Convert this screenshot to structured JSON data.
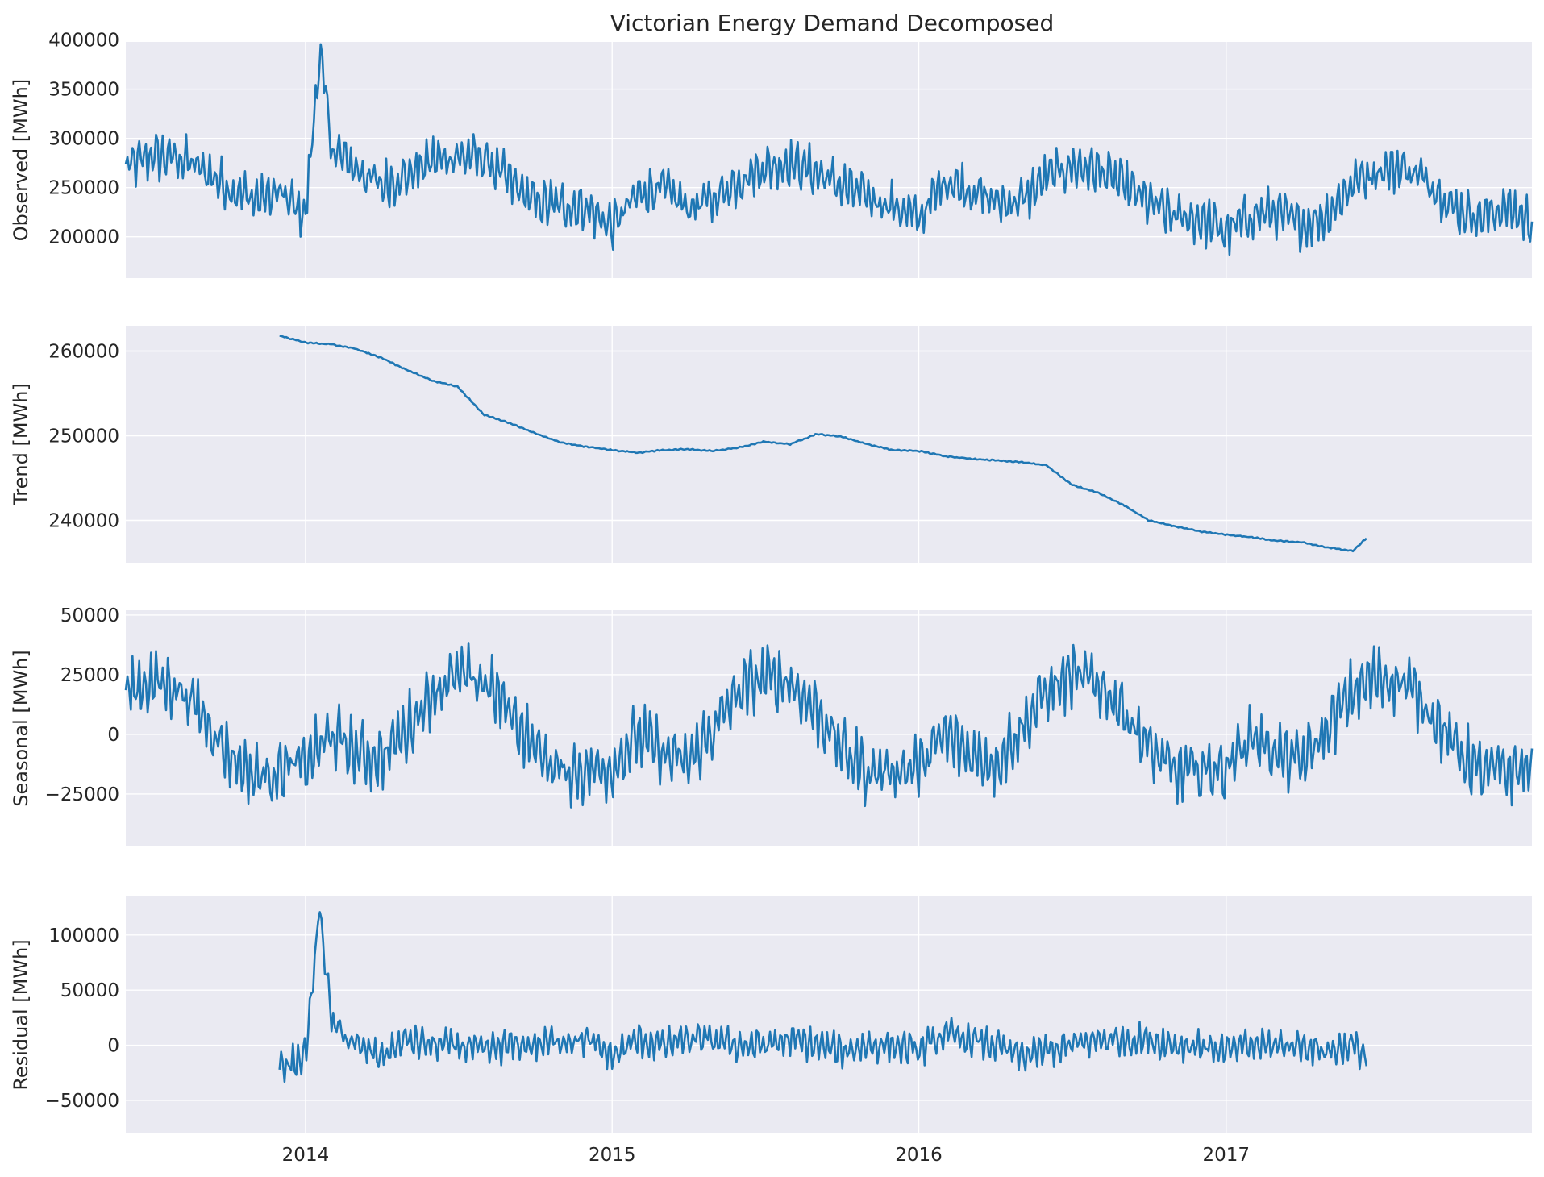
{
  "chart_data": {
    "type": "line",
    "title": "Victorian Energy Demand Decomposed",
    "xlabel": "",
    "x_range": [
      "2013-06-01",
      "2017-12-31"
    ],
    "x_ticks": [
      "2014",
      "2015",
      "2016",
      "2017"
    ],
    "color": "#1f77b4",
    "background": "#eaeaf2",
    "grid": true,
    "panels": [
      {
        "id": "observed",
        "ylabel": "Observed [MWh]",
        "ylim": [
          158000,
          398000
        ],
        "yticks": [
          200000,
          250000,
          300000,
          350000,
          400000
        ],
        "ytick_labels": [
          "200000",
          "250000",
          "300000",
          "350000",
          "400000"
        ],
        "x": [
          "2013-06-01",
          "2013-07-01",
          "2013-08-01",
          "2013-09-01",
          "2013-10-01",
          "2013-11-01",
          "2013-12-01",
          "2014-01-01",
          "2014-01-18",
          "2014-02-01",
          "2014-03-01",
          "2014-04-01",
          "2014-05-01",
          "2014-06-01",
          "2014-07-01",
          "2014-08-01",
          "2014-09-01",
          "2014-10-01",
          "2014-11-01",
          "2014-12-01",
          "2015-01-01",
          "2015-02-01",
          "2015-03-01",
          "2015-04-01",
          "2015-05-01",
          "2015-06-01",
          "2015-07-01",
          "2015-08-01",
          "2015-09-01",
          "2015-10-01",
          "2015-11-01",
          "2015-12-01",
          "2016-01-01",
          "2016-02-01",
          "2016-03-01",
          "2016-04-01",
          "2016-05-01",
          "2016-06-01",
          "2016-07-01",
          "2016-08-01",
          "2016-09-01",
          "2016-10-01",
          "2016-11-01",
          "2016-12-01",
          "2017-01-01",
          "2017-02-01",
          "2017-03-01",
          "2017-04-01",
          "2017-05-01",
          "2017-06-01",
          "2017-07-01",
          "2017-08-01",
          "2017-09-01",
          "2017-10-01",
          "2017-11-01",
          "2017-12-01",
          "2017-12-31"
        ],
        "y": [
          270000,
          282000,
          281000,
          268000,
          250000,
          238000,
          244000,
          222000,
          390000,
          290000,
          270000,
          252000,
          262000,
          278000,
          282000,
          280000,
          256000,
          235000,
          232000,
          230000,
          210000,
          244000,
          250000,
          230000,
          238000,
          258000,
          270000,
          276000,
          265000,
          252000,
          240000,
          232000,
          218000,
          258000,
          248000,
          236000,
          235000,
          260000,
          272000,
          268000,
          252000,
          235000,
          220000,
          218000,
          205000,
          222000,
          225000,
          212000,
          222000,
          255000,
          268000,
          270000,
          255000,
          228000,
          220000,
          230000,
          215000
        ]
      },
      {
        "id": "trend",
        "ylabel": "Trend [MWh]",
        "ylim": [
          235000,
          263000
        ],
        "yticks": [
          240000,
          250000,
          260000
        ],
        "ytick_labels": [
          "240000",
          "250000",
          "260000"
        ],
        "x": [
          "2013-12-01",
          "2014-01-01",
          "2014-02-01",
          "2014-03-01",
          "2014-04-01",
          "2014-05-01",
          "2014-06-01",
          "2014-07-01",
          "2014-08-01",
          "2014-09-01",
          "2014-10-01",
          "2014-11-01",
          "2014-12-01",
          "2015-01-01",
          "2015-02-01",
          "2015-03-01",
          "2015-04-01",
          "2015-05-01",
          "2015-06-01",
          "2015-07-01",
          "2015-08-01",
          "2015-09-01",
          "2015-10-01",
          "2015-11-01",
          "2015-12-01",
          "2016-01-01",
          "2016-02-01",
          "2016-03-01",
          "2016-04-01",
          "2016-05-01",
          "2016-06-01",
          "2016-07-01",
          "2016-08-01",
          "2016-09-01",
          "2016-10-01",
          "2016-11-01",
          "2016-12-01",
          "2017-01-01",
          "2017-02-01",
          "2017-03-01",
          "2017-04-01",
          "2017-05-01",
          "2017-06-01",
          "2017-06-18"
        ],
        "y": [
          261800,
          261000,
          260800,
          260300,
          259200,
          257800,
          256500,
          255800,
          252500,
          251500,
          250300,
          249200,
          248700,
          248300,
          248000,
          248300,
          248400,
          248200,
          248600,
          249300,
          249000,
          250200,
          249900,
          249000,
          248300,
          248200,
          247600,
          247300,
          247100,
          246900,
          246500,
          244200,
          243300,
          241800,
          240000,
          239300,
          238700,
          238300,
          238000,
          237600,
          237400,
          236800,
          236400,
          238000
        ]
      },
      {
        "id": "seasonal",
        "ylabel": "Seasonal [MWh]",
        "ylim": [
          -47000,
          52000
        ],
        "yticks": [
          -25000,
          0,
          25000,
          50000
        ],
        "ytick_labels": [
          "−25000",
          "0",
          "25000",
          "50000"
        ],
        "period": "annual",
        "x": [
          "2013-06-01",
          "2013-07-01",
          "2013-08-01",
          "2013-09-01",
          "2013-10-01",
          "2013-11-01",
          "2013-12-01",
          "2014-01-01",
          "2014-02-01",
          "2014-03-01",
          "2014-04-01",
          "2014-05-01",
          "2014-06-01",
          "2014-07-01",
          "2014-08-01",
          "2014-09-01",
          "2014-10-01",
          "2014-11-01",
          "2014-12-01",
          "2015-01-01",
          "2015-02-01",
          "2015-03-01",
          "2015-04-01",
          "2015-05-01",
          "2015-06-01",
          "2015-07-01",
          "2015-08-01",
          "2015-09-01",
          "2015-10-01",
          "2015-11-01",
          "2015-12-01",
          "2016-01-01",
          "2016-02-01",
          "2016-03-01",
          "2016-04-01",
          "2016-05-01",
          "2016-06-01",
          "2016-07-01",
          "2016-08-01",
          "2016-09-01",
          "2016-10-01",
          "2016-11-01",
          "2016-12-01",
          "2017-01-01",
          "2017-02-01",
          "2017-03-01",
          "2017-04-01",
          "2017-05-01",
          "2017-06-01",
          "2017-07-01",
          "2017-08-01",
          "2017-09-01",
          "2017-10-01",
          "2017-11-01",
          "2017-12-01",
          "2017-12-31"
        ],
        "y": [
          18000,
          22000,
          20000,
          8000,
          -8000,
          -18000,
          -15000,
          -12000,
          0,
          -8000,
          -10000,
          2000,
          18000,
          24000,
          22000,
          10000,
          -6000,
          -16000,
          -15000,
          -14000,
          0,
          -8000,
          -12000,
          2000,
          18000,
          24000,
          22000,
          10000,
          -6000,
          -16000,
          -15000,
          -14000,
          0,
          -8000,
          -12000,
          2000,
          18000,
          24000,
          22000,
          10000,
          -6000,
          -16000,
          -15000,
          -14000,
          0,
          -8000,
          -12000,
          2000,
          18000,
          24000,
          22000,
          10000,
          -6000,
          -16000,
          -15000,
          -14000
        ]
      },
      {
        "id": "residual",
        "ylabel": "Residual [MWh]",
        "ylim": [
          -80000,
          135000
        ],
        "yticks": [
          -50000,
          0,
          50000,
          100000
        ],
        "ytick_labels": [
          "−50000",
          "0",
          "50000",
          "100000"
        ],
        "x": [
          "2013-12-01",
          "2014-01-01",
          "2014-01-18",
          "2014-02-01",
          "2014-03-01",
          "2014-04-01",
          "2014-05-01",
          "2014-06-01",
          "2014-07-01",
          "2014-08-01",
          "2014-09-01",
          "2014-10-01",
          "2014-11-01",
          "2014-12-01",
          "2015-01-01",
          "2015-02-01",
          "2015-03-01",
          "2015-04-01",
          "2015-05-01",
          "2015-06-01",
          "2015-07-01",
          "2015-08-01",
          "2015-09-01",
          "2015-10-01",
          "2015-11-01",
          "2015-12-01",
          "2016-01-01",
          "2016-02-01",
          "2016-03-01",
          "2016-04-01",
          "2016-05-01",
          "2016-06-01",
          "2016-07-01",
          "2016-08-01",
          "2016-09-01",
          "2016-10-01",
          "2016-11-01",
          "2016-12-01",
          "2017-01-01",
          "2017-02-01",
          "2017-03-01",
          "2017-04-01",
          "2017-05-01",
          "2017-06-01",
          "2017-06-18"
        ],
        "y": [
          -20000,
          -10000,
          125000,
          20000,
          0,
          -10000,
          5000,
          0,
          0,
          -5000,
          0,
          0,
          5000,
          5000,
          -10000,
          5000,
          0,
          5000,
          5000,
          0,
          0,
          5000,
          0,
          -5000,
          0,
          0,
          -5000,
          10000,
          5000,
          0,
          -10000,
          -5000,
          0,
          5000,
          5000,
          5000,
          0,
          0,
          -5000,
          0,
          0,
          0,
          -5000,
          0,
          -10000
        ]
      }
    ]
  }
}
